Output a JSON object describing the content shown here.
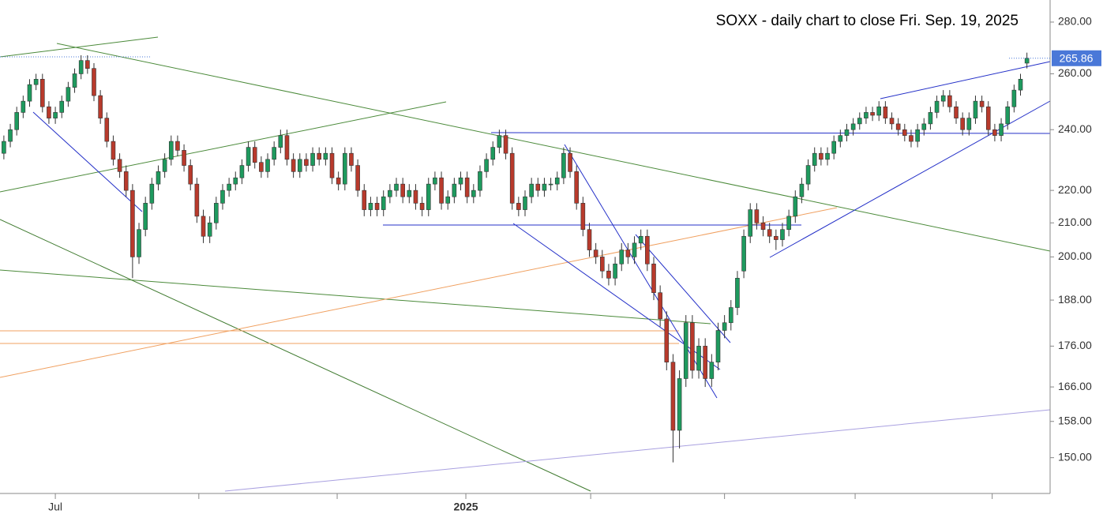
{
  "chart_data": {
    "type": "candlestick",
    "title": "SOXX - daily chart to close Fri. Sep. 19, 2025",
    "log_scale": true,
    "up_color": "#1e9a5e",
    "down_color": "#b83a2c",
    "ylim": [
      142.5,
      289
    ],
    "yticks": [
      {
        "value": 150,
        "label": "150.00"
      },
      {
        "value": 158,
        "label": "158.00"
      },
      {
        "value": 166,
        "label": "166.00"
      },
      {
        "value": 176,
        "label": "176.00"
      },
      {
        "value": 188,
        "label": "188.00"
      },
      {
        "value": 200,
        "label": "200.00"
      },
      {
        "value": 210,
        "label": "210.00"
      },
      {
        "value": 220,
        "label": "220.00"
      },
      {
        "value": 240,
        "label": "240.00"
      },
      {
        "value": 260,
        "label": "260.00"
      },
      {
        "value": 280,
        "label": "280.00"
      }
    ],
    "xlim": [
      -0.6,
      162.6
    ],
    "xticks": [
      {
        "value": 8,
        "label": "Jul"
      },
      {
        "value": 30.3,
        "label": null
      },
      {
        "value": 51.8,
        "label": null
      },
      {
        "value": 71.8,
        "label": "2025"
      },
      {
        "value": 91.2,
        "label": null
      },
      {
        "value": 112,
        "label": null
      },
      {
        "value": 132.3,
        "label": null
      },
      {
        "value": 153.6,
        "label": null
      }
    ],
    "last_price": {
      "value": 265.86,
      "label": "265.86",
      "color": "#4a78d8"
    },
    "open": [
      232,
      236,
      240,
      246,
      250,
      256,
      258,
      248,
      244,
      246,
      250,
      255,
      260,
      265,
      262,
      252,
      244,
      236,
      230,
      226,
      220,
      200,
      208,
      216,
      222,
      226,
      230,
      236,
      233,
      228,
      222,
      212,
      206,
      210,
      216,
      220,
      222,
      224,
      228,
      234,
      229,
      226,
      230,
      234,
      238,
      230,
      226,
      230,
      228,
      232,
      230,
      232,
      224,
      222,
      232,
      228,
      220,
      214,
      216,
      214,
      218,
      220,
      222,
      218,
      220,
      216,
      214,
      222,
      224,
      216,
      218,
      222,
      224,
      218,
      220,
      226,
      230,
      234,
      238,
      232,
      216,
      214,
      218,
      222,
      220,
      222,
      222,
      224,
      232,
      226,
      216,
      208,
      202,
      200,
      196,
      194,
      198,
      202,
      200,
      204,
      206,
      198,
      190,
      183,
      172,
      156,
      168,
      182,
      170,
      176,
      168,
      172,
      180,
      182,
      186,
      196,
      206,
      214,
      210,
      208,
      206,
      205,
      208,
      212,
      218,
      222,
      228,
      232,
      230,
      232,
      236,
      238,
      240,
      242,
      244,
      246,
      245,
      248,
      244,
      242,
      240,
      238,
      236,
      240,
      242,
      246,
      250,
      252,
      248,
      244,
      240,
      244,
      250,
      248,
      240,
      238,
      242,
      248,
      254,
      264
    ],
    "high": [
      238,
      242,
      248,
      252,
      258,
      260,
      260,
      250,
      248,
      252,
      257,
      262,
      267,
      267,
      264,
      254,
      246,
      238,
      232,
      228,
      222,
      210,
      218,
      224,
      228,
      232,
      238,
      238,
      235,
      230,
      224,
      214,
      212,
      218,
      222,
      224,
      226,
      230,
      236,
      236,
      231,
      232,
      236,
      240,
      240,
      232,
      232,
      232,
      234,
      234,
      234,
      234,
      226,
      234,
      234,
      230,
      222,
      218,
      218,
      220,
      222,
      224,
      224,
      222,
      222,
      218,
      224,
      226,
      226,
      220,
      224,
      226,
      226,
      222,
      228,
      232,
      236,
      240,
      240,
      234,
      218,
      220,
      224,
      224,
      224,
      224,
      226,
      234,
      234,
      228,
      218,
      210,
      204,
      202,
      198,
      200,
      204,
      204,
      206,
      208,
      208,
      200,
      192,
      185,
      174,
      170,
      184,
      184,
      178,
      178,
      174,
      182,
      184,
      188,
      196,
      208,
      216,
      216,
      212,
      210,
      208,
      210,
      214,
      220,
      224,
      230,
      234,
      234,
      234,
      238,
      240,
      242,
      244,
      246,
      248,
      248,
      250,
      250,
      246,
      244,
      242,
      240,
      242,
      244,
      248,
      252,
      254,
      254,
      250,
      246,
      246,
      252,
      252,
      250,
      242,
      244,
      250,
      256,
      260,
      268
    ],
    "low": [
      230,
      234,
      238,
      244,
      248,
      254,
      246,
      242,
      242,
      244,
      248,
      253,
      258,
      260,
      250,
      242,
      234,
      228,
      224,
      218,
      194,
      198,
      206,
      214,
      220,
      224,
      228,
      231,
      226,
      220,
      210,
      204,
      204,
      208,
      214,
      218,
      220,
      222,
      226,
      227,
      224,
      224,
      228,
      232,
      228,
      224,
      224,
      226,
      226,
      228,
      228,
      222,
      220,
      220,
      226,
      218,
      212,
      212,
      212,
      212,
      216,
      218,
      216,
      216,
      214,
      212,
      212,
      220,
      214,
      214,
      216,
      220,
      216,
      216,
      218,
      224,
      228,
      232,
      230,
      214,
      212,
      212,
      216,
      218,
      218,
      220,
      220,
      222,
      224,
      214,
      206,
      200,
      198,
      194,
      192,
      192,
      196,
      198,
      198,
      202,
      196,
      188,
      181,
      170,
      149,
      152,
      166,
      168,
      168,
      166,
      166,
      170,
      178,
      180,
      184,
      194,
      204,
      208,
      206,
      204,
      202,
      203,
      206,
      210,
      216,
      220,
      226,
      228,
      228,
      230,
      234,
      236,
      238,
      240,
      242,
      243,
      243,
      242,
      240,
      238,
      236,
      234,
      234,
      238,
      240,
      244,
      248,
      246,
      242,
      238,
      238,
      242,
      246,
      238,
      236,
      236,
      240,
      246,
      252,
      262
    ],
    "close": [
      236,
      240,
      246,
      250,
      256,
      258,
      248,
      244,
      246,
      250,
      255,
      260,
      265,
      262,
      252,
      244,
      236,
      230,
      226,
      220,
      200,
      208,
      216,
      222,
      226,
      230,
      236,
      233,
      228,
      222,
      212,
      206,
      210,
      216,
      220,
      222,
      224,
      228,
      234,
      229,
      226,
      230,
      234,
      238,
      230,
      226,
      230,
      228,
      232,
      230,
      232,
      224,
      222,
      232,
      228,
      220,
      214,
      216,
      214,
      218,
      220,
      222,
      218,
      220,
      216,
      214,
      222,
      224,
      216,
      218,
      222,
      224,
      218,
      220,
      226,
      230,
      234,
      238,
      232,
      216,
      214,
      218,
      222,
      220,
      222,
      222,
      224,
      232,
      226,
      216,
      208,
      202,
      200,
      196,
      194,
      198,
      202,
      200,
      204,
      206,
      198,
      190,
      183,
      172,
      156,
      168,
      182,
      170,
      176,
      168,
      172,
      180,
      182,
      186,
      194,
      206,
      214,
      210,
      208,
      206,
      205,
      208,
      212,
      218,
      222,
      228,
      232,
      230,
      232,
      236,
      238,
      240,
      242,
      244,
      246,
      245,
      248,
      244,
      242,
      240,
      238,
      236,
      240,
      242,
      246,
      250,
      252,
      248,
      244,
      240,
      244,
      250,
      248,
      240,
      238,
      242,
      248,
      254,
      258,
      265.86
    ]
  }
}
